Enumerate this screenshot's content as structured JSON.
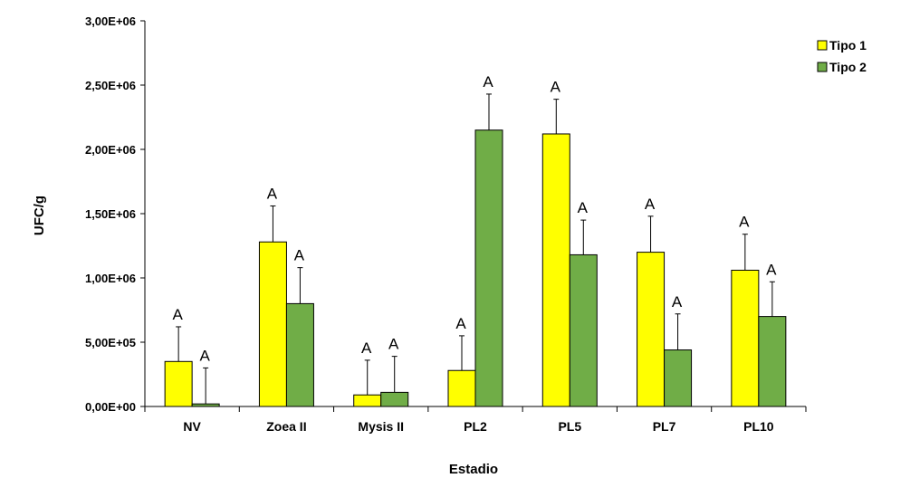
{
  "chart_data": {
    "type": "bar",
    "xlabel": "Estadio",
    "ylabel": "UFC/g",
    "ylim": [
      0,
      3000000
    ],
    "y_ticks": [
      0,
      500000,
      1000000,
      1500000,
      2000000,
      2500000,
      3000000
    ],
    "y_tick_labels": [
      "0,00E+00",
      "5,00E+05",
      "1,00E+06",
      "1,50E+06",
      "2,00E+06",
      "2,50E+06",
      "3,00E+06"
    ],
    "categories": [
      "NV",
      "Zoea II",
      "Mysis II",
      "PL2",
      "PL5",
      "PL7",
      "PL10"
    ],
    "series": [
      {
        "name": "Tipo 1",
        "color": "#ffff00",
        "values": [
          350000,
          1280000,
          90000,
          280000,
          2120000,
          1200000,
          1060000
        ],
        "error": [
          270000,
          280000,
          270000,
          270000,
          270000,
          280000,
          280000
        ],
        "labels": [
          "A",
          "A",
          "A",
          "A",
          "A",
          "A",
          "A"
        ]
      },
      {
        "name": "Tipo 2",
        "color": "#70ad47",
        "values": [
          20000,
          800000,
          110000,
          2150000,
          1180000,
          440000,
          700000
        ],
        "error": [
          280000,
          280000,
          280000,
          280000,
          270000,
          280000,
          270000
        ],
        "labels": [
          "A",
          "A",
          "A",
          "A",
          "A",
          "A",
          "A"
        ]
      }
    ],
    "legend_position": "right",
    "grid": false
  }
}
